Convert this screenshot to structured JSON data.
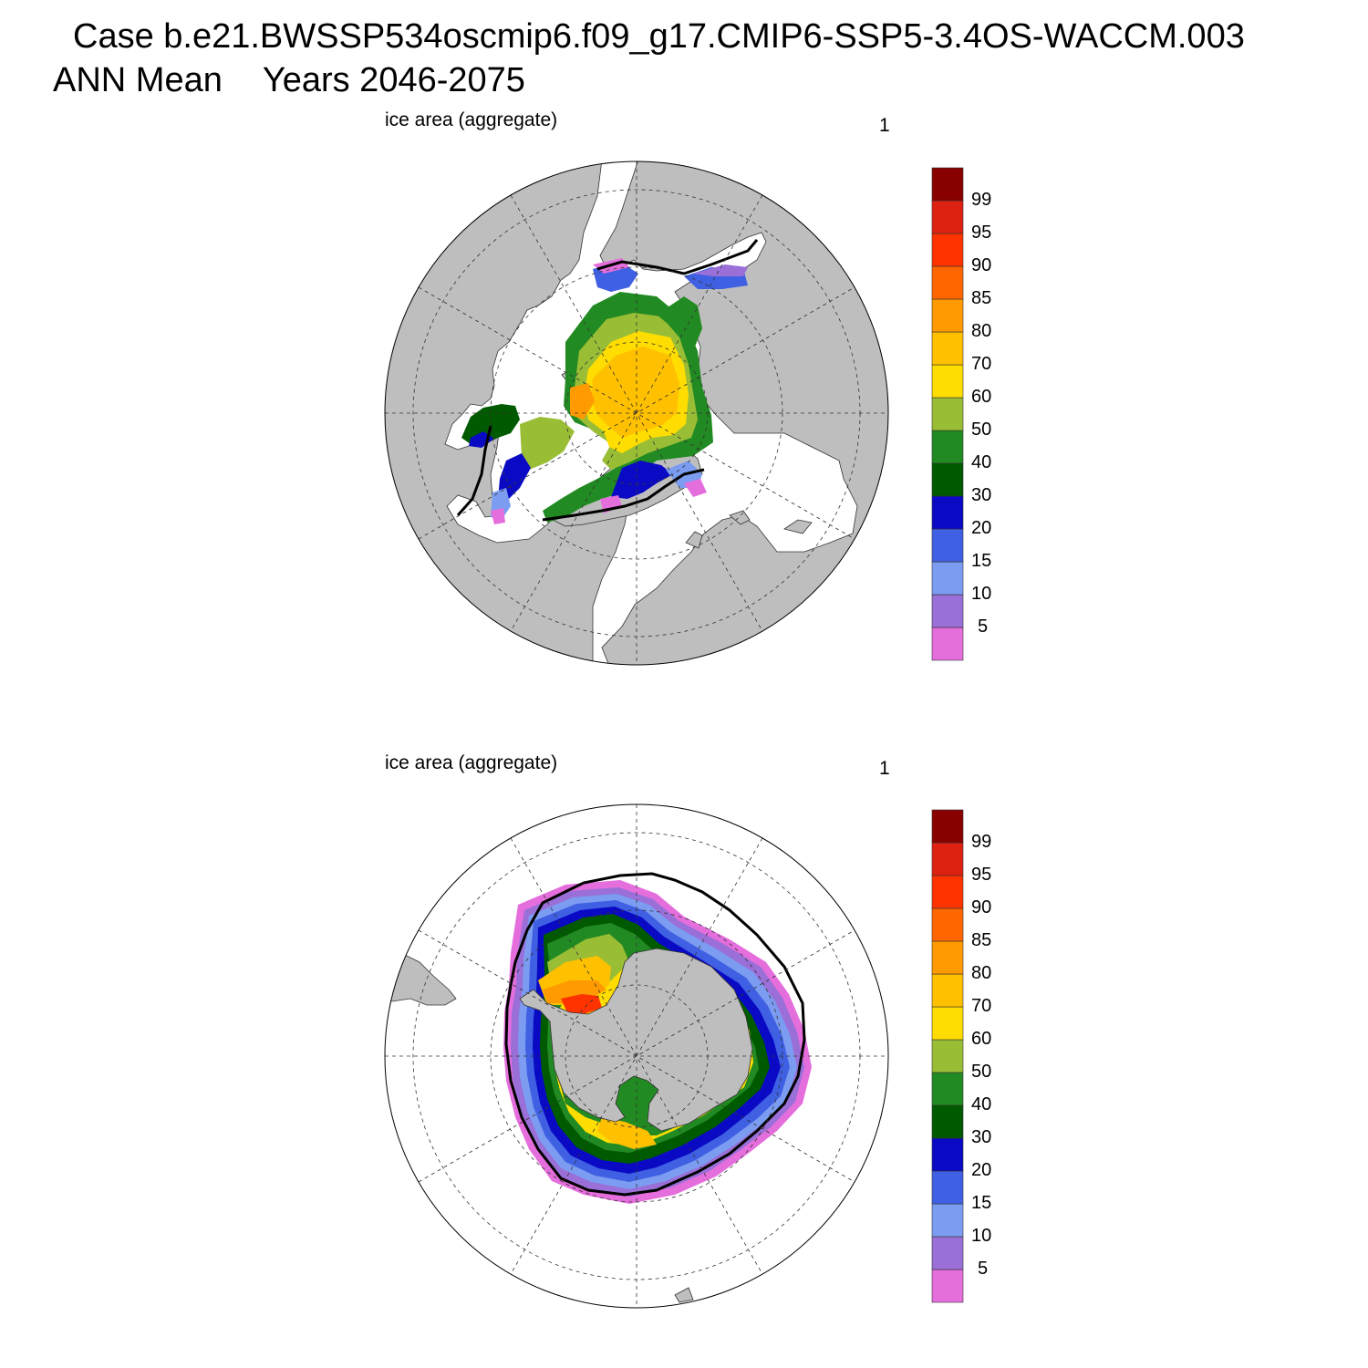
{
  "header": {
    "case_title": "Case b.e21.BWSSP534oscmip6.f09_g17.CMIP6-SSP5-3.4OS-WACCM.003",
    "period_label": "ANN Mean",
    "years_label": "Years 2046-2075"
  },
  "colors": {
    "land": "#bebebe",
    "ocean": "#ffffff",
    "contour_levels": [
      {
        "label": "",
        "color": "#e56edd"
      },
      {
        "label": "5",
        "color": "#9a6fd8"
      },
      {
        "label": "10",
        "color": "#7b9cf0"
      },
      {
        "label": "15",
        "color": "#3f60e3"
      },
      {
        "label": "20",
        "color": "#0a0ac4"
      },
      {
        "label": "30",
        "color": "#005a00"
      },
      {
        "label": "40",
        "color": "#228a22"
      },
      {
        "label": "50",
        "color": "#9abd36"
      },
      {
        "label": "60",
        "color": "#ffdd00"
      },
      {
        "label": "70",
        "color": "#ffc000"
      },
      {
        "label": "80",
        "color": "#ff9a00"
      },
      {
        "label": "85",
        "color": "#ff6600"
      },
      {
        "label": "90",
        "color": "#ff3300"
      },
      {
        "label": "95",
        "color": "#dd2211"
      },
      {
        "label": "99",
        "color": "#880000"
      }
    ]
  },
  "panels": [
    {
      "label": "ice area  (aggregate)",
      "index_label": "1",
      "hemisphere": "north"
    },
    {
      "label": "ice area  (aggregate)",
      "index_label": "1",
      "hemisphere": "south"
    }
  ]
}
